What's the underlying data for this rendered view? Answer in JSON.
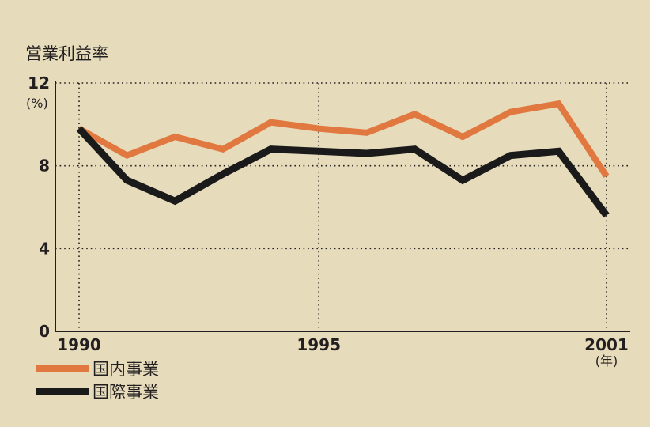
{
  "chart_data": {
    "type": "line",
    "title": "営業利益率",
    "y_unit": "(%)",
    "x_unit": "(年)",
    "x": [
      1990,
      1991,
      1992,
      1993,
      1994,
      1995,
      1996,
      1997,
      1998,
      1999,
      2000,
      2001
    ],
    "x_tick_labels": [
      "1990",
      "1995",
      "2001"
    ],
    "x_tick_values": [
      1990,
      1995,
      2001
    ],
    "y_tick_labels": [
      "0",
      "4",
      "8",
      "12"
    ],
    "y_tick_values": [
      0,
      4,
      8,
      12
    ],
    "xlim": [
      1990,
      2001
    ],
    "ylim": [
      0,
      12
    ],
    "grid": "dotted",
    "legend_position": "bottom-left",
    "series": [
      {
        "name": "国内事業",
        "color": "#e07840",
        "values": [
          9.8,
          8.5,
          9.4,
          8.8,
          10.1,
          9.8,
          9.6,
          10.5,
          9.4,
          10.6,
          11.0,
          7.5
        ]
      },
      {
        "name": "国際事業",
        "color": "#1a1a1a",
        "values": [
          9.8,
          7.3,
          6.3,
          7.6,
          8.8,
          8.7,
          8.6,
          8.8,
          7.3,
          8.5,
          8.7,
          5.6
        ]
      }
    ]
  }
}
